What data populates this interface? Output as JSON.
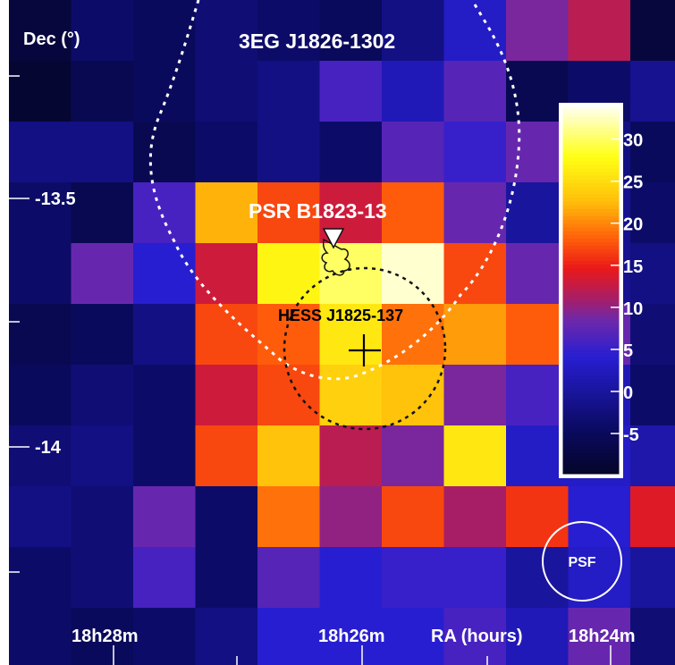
{
  "chart_data": {
    "type": "heatmap",
    "title": "",
    "xlabel": "RA (hours)",
    "ylabel": "Dec (°)",
    "x_tick_labels": [
      "18h28m",
      "18h26m",
      "18h24m"
    ],
    "y_tick_labels": [
      "-13.5",
      "-14"
    ],
    "colorbar": {
      "range": [
        -10,
        34
      ],
      "tick_labels": [
        "30",
        "25",
        "20",
        "15",
        "10",
        "5",
        "0",
        "-5"
      ],
      "tick_values": [
        30,
        25,
        20,
        15,
        10,
        5,
        0,
        -5
      ]
    },
    "grid": [
      [
        -8,
        -4,
        -5,
        -3,
        -4,
        -5,
        -2,
        3,
        9,
        12,
        -8
      ],
      [
        -9,
        -6,
        -5,
        -3,
        -2,
        6,
        2,
        7,
        -6,
        -4,
        -1
      ],
      [
        -2,
        -2,
        -6,
        -4,
        -2,
        -4,
        7,
        5,
        8,
        -2,
        -5
      ],
      [
        -4,
        -6,
        6,
        22,
        17,
        13,
        18,
        8,
        0,
        -1,
        -4
      ],
      [
        -4,
        8,
        4,
        13,
        27,
        30,
        33,
        17,
        8,
        -1,
        -2
      ],
      [
        -6,
        -5,
        -2,
        17,
        18,
        26,
        19,
        21,
        18,
        8,
        -3
      ],
      [
        -5,
        -3,
        -4,
        13,
        17,
        24,
        23,
        9,
        6,
        2,
        -4
      ],
      [
        -3,
        -2,
        -4,
        17,
        23,
        12,
        9,
        26,
        3,
        3,
        1
      ],
      [
        -2,
        -3,
        8,
        -4,
        19,
        10,
        17,
        11,
        16,
        4,
        14
      ],
      [
        -4,
        -3,
        6,
        -4,
        7,
        4,
        5,
        5,
        0,
        3,
        0
      ],
      [
        -4,
        -5,
        -4,
        -2,
        4,
        4,
        4,
        6,
        2,
        8,
        -3
      ]
    ],
    "annotations": {
      "egret_label": "3EG J1826-1302",
      "pulsar_label": "PSR B1823-13",
      "hess_label": "HESS J1825-137",
      "psf_label": "PSF"
    },
    "colors": {
      "egret_contour": "#ffffff",
      "hess_circle": "#111111",
      "pulsar_contour": "#111111",
      "hess_marker": "#000000"
    }
  }
}
